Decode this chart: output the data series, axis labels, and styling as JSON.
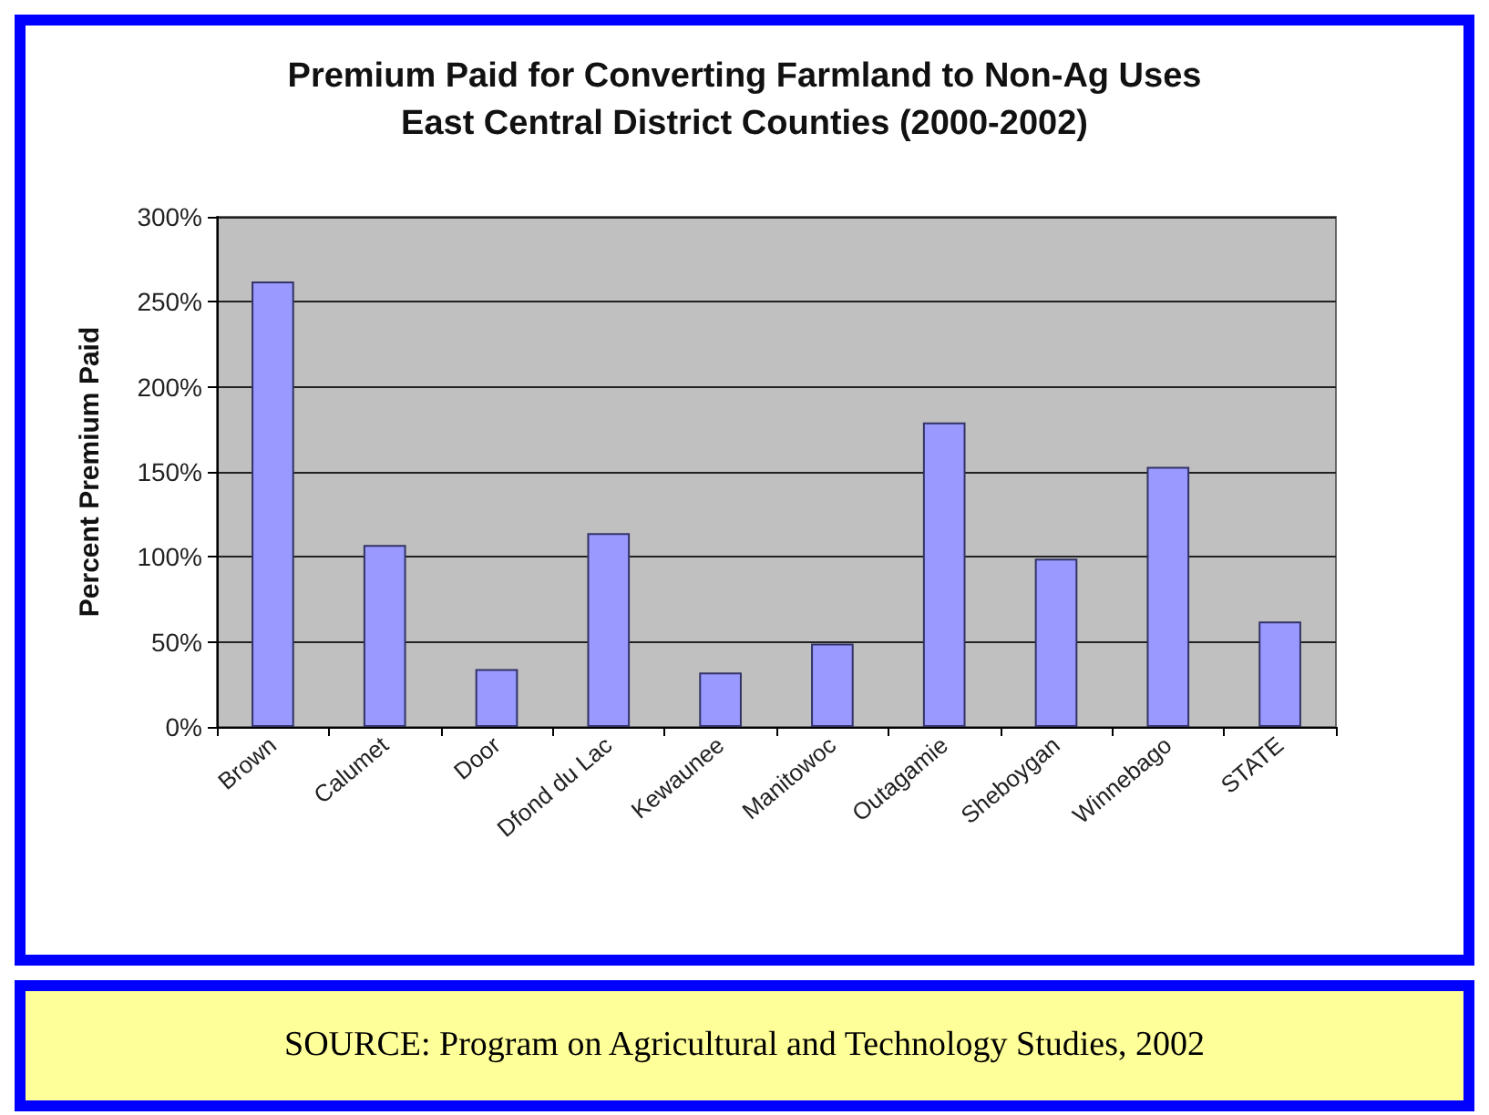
{
  "chart_data": {
    "type": "bar",
    "title": "Premium Paid for Converting Farmland to Non-Ag Uses\nEast Central District Counties (2000-2002)",
    "ylabel": "Percent Premium Paid",
    "categories": [
      "Brown",
      "Calumet",
      "Door",
      "Dfond du Lac",
      "Kewaunee",
      "Manitowoc",
      "Outagamie",
      "Sheboygan",
      "Winnebago",
      "STATE"
    ],
    "values": [
      262,
      107,
      34,
      114,
      32,
      49,
      179,
      99,
      153,
      62
    ],
    "color": "#9999ff",
    "ylim": [
      0,
      300
    ],
    "yticks": [
      {
        "value": 0,
        "label": "0%"
      },
      {
        "value": 50,
        "label": "50%"
      },
      {
        "value": 100,
        "label": "100%"
      },
      {
        "value": 150,
        "label": "150%"
      },
      {
        "value": 200,
        "label": "200%"
      },
      {
        "value": 250,
        "label": "250%"
      },
      {
        "value": 300,
        "label": "300%"
      }
    ],
    "grid": "y",
    "annotations": [
      "SOURCE:  Program on Agricultural and Technology Studies, 2002"
    ]
  }
}
